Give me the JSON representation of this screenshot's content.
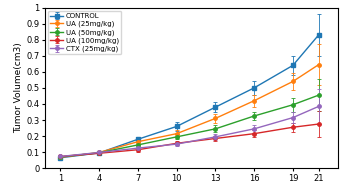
{
  "chart_data": {
    "type": "line",
    "ylabel": "Tumor Volume(cm3)",
    "x": [
      1,
      4,
      7,
      10,
      13,
      16,
      19,
      21
    ],
    "xlim": [
      -0.2,
      22.5
    ],
    "xticks": [
      1,
      4,
      7,
      10,
      13,
      16,
      19,
      21
    ],
    "ylim": [
      0,
      1.0
    ],
    "yticks": [
      0,
      0.1,
      0.2,
      0.3,
      0.4,
      0.5,
      0.6,
      0.7,
      0.8,
      0.9,
      1
    ],
    "legend": "upper left",
    "series": [
      {
        "name": "CONTROL",
        "marker": "square",
        "values": [
          0.065,
          0.095,
          0.18,
          0.26,
          0.38,
          0.5,
          0.64,
          0.83
        ],
        "errors": [
          0.006,
          0.009,
          0.016,
          0.026,
          0.032,
          0.042,
          0.058,
          0.13
        ]
      },
      {
        "name": "UA (25mg/kg)",
        "marker": "circle",
        "values": [
          0.068,
          0.098,
          0.165,
          0.215,
          0.31,
          0.42,
          0.54,
          0.645
        ],
        "errors": [
          0.006,
          0.009,
          0.013,
          0.021,
          0.026,
          0.036,
          0.052,
          0.13
        ]
      },
      {
        "name": "UA (50mg/kg)",
        "marker": "circle",
        "values": [
          0.07,
          0.096,
          0.145,
          0.195,
          0.245,
          0.325,
          0.395,
          0.455
        ],
        "errors": [
          0.006,
          0.008,
          0.013,
          0.016,
          0.022,
          0.027,
          0.042,
          0.1
        ]
      },
      {
        "name": "UA (100mg/kg)",
        "marker": "circle",
        "values": [
          0.073,
          0.093,
          0.115,
          0.155,
          0.185,
          0.215,
          0.255,
          0.275
        ],
        "errors": [
          0.006,
          0.008,
          0.011,
          0.013,
          0.016,
          0.02,
          0.027,
          0.08
        ]
      },
      {
        "name": "CTX (25mg/kg)",
        "marker": "circle",
        "values": [
          0.073,
          0.098,
          0.125,
          0.15,
          0.195,
          0.245,
          0.315,
          0.385
        ],
        "errors": [
          0.006,
          0.008,
          0.011,
          0.014,
          0.019,
          0.024,
          0.032,
          0.11
        ]
      }
    ]
  }
}
